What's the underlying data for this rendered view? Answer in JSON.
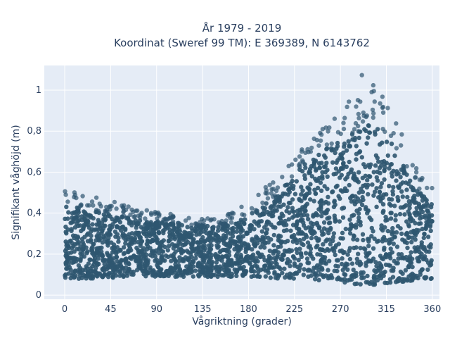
{
  "chart_data": {
    "type": "scatter",
    "title_lines": [
      "År 1979 - 2019",
      "Koordinat (Sweref 99 TM): E 369389, N 6143762"
    ],
    "xlabel": "Vågriktning (grader)",
    "ylabel": "Signifikant våghöjd (m)",
    "xlim": [
      -20,
      367
    ],
    "ylim": [
      -0.02,
      1.12
    ],
    "x_ticks": [
      0,
      45,
      90,
      135,
      180,
      225,
      270,
      315,
      360
    ],
    "x_tick_labels": [
      "0",
      "45",
      "90",
      "135",
      "180",
      "225",
      "270",
      "315",
      "360"
    ],
    "y_ticks": [
      0,
      0.2,
      0.4,
      0.6,
      0.8,
      1.0
    ],
    "y_tick_labels": [
      "0",
      "0,2",
      "0,4",
      "0,6",
      "0,8",
      "1"
    ],
    "grid": true,
    "marker_color": "#2f5670",
    "background_color": "#e5ecf6",
    "envelope": [
      {
        "x": 0,
        "low": 0.08,
        "high": 0.44,
        "max": 0.54
      },
      {
        "x": 30,
        "low": 0.08,
        "high": 0.41,
        "max": 0.48
      },
      {
        "x": 60,
        "low": 0.09,
        "high": 0.38,
        "max": 0.44
      },
      {
        "x": 90,
        "low": 0.09,
        "high": 0.36,
        "max": 0.41
      },
      {
        "x": 120,
        "low": 0.09,
        "high": 0.34,
        "max": 0.38
      },
      {
        "x": 150,
        "low": 0.09,
        "high": 0.34,
        "max": 0.38
      },
      {
        "x": 170,
        "low": 0.09,
        "high": 0.36,
        "max": 0.42
      },
      {
        "x": 190,
        "low": 0.09,
        "high": 0.42,
        "max": 0.5
      },
      {
        "x": 210,
        "low": 0.08,
        "high": 0.5,
        "max": 0.58
      },
      {
        "x": 230,
        "low": 0.08,
        "high": 0.62,
        "max": 0.7
      },
      {
        "x": 250,
        "low": 0.07,
        "high": 0.7,
        "max": 0.8
      },
      {
        "x": 270,
        "low": 0.06,
        "high": 0.75,
        "max": 0.9
      },
      {
        "x": 290,
        "low": 0.05,
        "high": 0.82,
        "max": 1.08
      },
      {
        "x": 305,
        "low": 0.05,
        "high": 0.84,
        "max": 1.03
      },
      {
        "x": 320,
        "low": 0.06,
        "high": 0.74,
        "max": 0.92
      },
      {
        "x": 340,
        "low": 0.07,
        "high": 0.56,
        "max": 0.66
      },
      {
        "x": 360,
        "low": 0.08,
        "high": 0.44,
        "max": 0.54
      }
    ],
    "points_note_count": 2600
  }
}
